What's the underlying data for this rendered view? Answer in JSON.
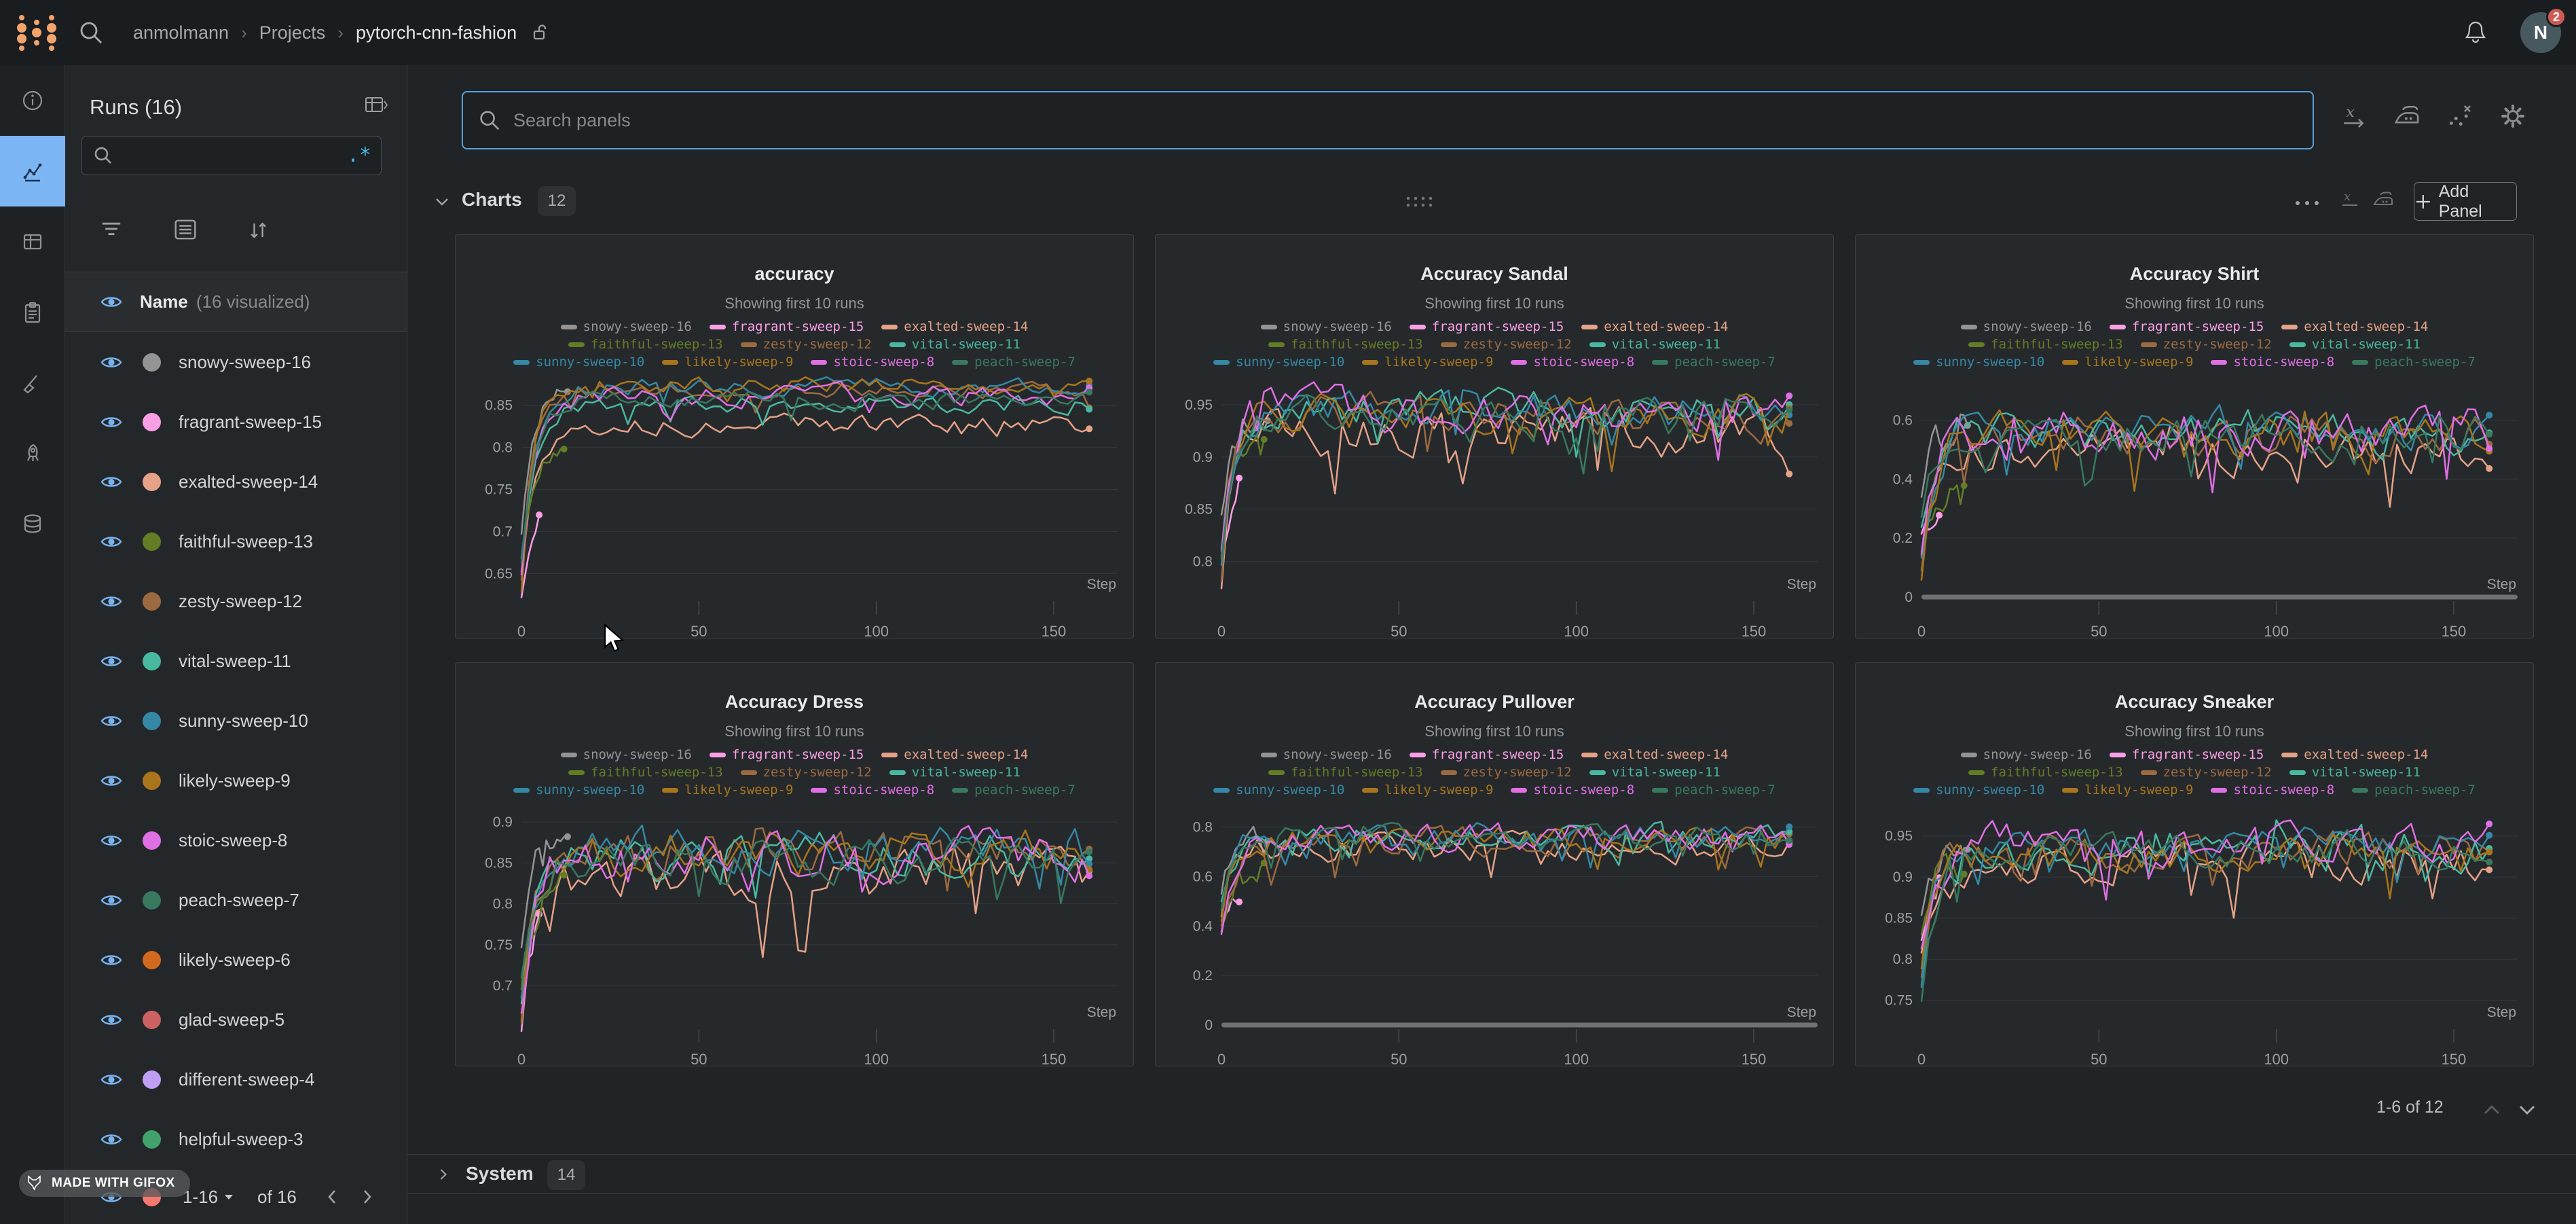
{
  "topbar": {
    "breadcrumb": [
      "anmolmann",
      "Projects",
      "pytorch-cnn-fashion"
    ],
    "breadcrumb_separator": "›",
    "notification_count": "2",
    "avatar_initial": "N"
  },
  "nav_rail": {
    "items": [
      "overview",
      "workspace",
      "runs-table",
      "logs",
      "sweeps",
      "launch",
      "artifacts"
    ],
    "active": "workspace",
    "active_color": "#7cb5f3"
  },
  "sidebar": {
    "title": "Runs (16)",
    "search_value": "",
    "regex_icon": ".*",
    "list_header": {
      "name": "Name",
      "visualized": "(16 visualized)"
    },
    "runs": [
      {
        "name": "snowy-sweep-16",
        "color": "#949494"
      },
      {
        "name": "fragrant-sweep-15",
        "color": "#fa9ee6"
      },
      {
        "name": "exalted-sweep-14",
        "color": "#e5a287"
      },
      {
        "name": "faithful-sweep-13",
        "color": "#627d25"
      },
      {
        "name": "zesty-sweep-12",
        "color": "#9c6a40"
      },
      {
        "name": "vital-sweep-11",
        "color": "#49b8a0"
      },
      {
        "name": "sunny-sweep-10",
        "color": "#3488a5"
      },
      {
        "name": "likely-sweep-9",
        "color": "#a8751c"
      },
      {
        "name": "stoic-sweep-8",
        "color": "#df6fe4"
      },
      {
        "name": "peach-sweep-7",
        "color": "#38795f"
      },
      {
        "name": "likely-sweep-6",
        "color": "#d2691e"
      },
      {
        "name": "glad-sweep-5",
        "color": "#ce6161"
      },
      {
        "name": "different-sweep-4",
        "color": "#c09ef4"
      },
      {
        "name": "helpful-sweep-3",
        "color": "#43a26c"
      }
    ],
    "partial_run_color": "#f5786e",
    "pagination": {
      "range": "1-16",
      "of": "of 16"
    }
  },
  "main": {
    "search_placeholder": "Search panels",
    "charts_section": {
      "label": "Charts",
      "count": "12",
      "add_panel": "Add Panel",
      "pagination": "1-6 of 12"
    },
    "system_section": {
      "label": "System",
      "count": "14"
    }
  },
  "watermark": "MADE WITH GIFOX",
  "chart_data": [
    {
      "type": "line",
      "title": "accuracy",
      "subtitle": "Showing first 10 runs",
      "xlabel": "Step",
      "x_ticks": [
        0,
        50,
        100,
        150
      ],
      "x_max": 168,
      "grid": true,
      "legend_position": "top",
      "ylim": [
        0.622,
        0.878
      ],
      "y_ticks": [
        0.65,
        0.7,
        0.75,
        0.8,
        0.85
      ],
      "zero_axis_bar": false,
      "series": [
        {
          "name": "snowy-sweep-16",
          "start": 0.7,
          "plateau": 0.876,
          "noise": 0.006,
          "steps": 13
        },
        {
          "name": "fragrant-sweep-15",
          "start": 0.627,
          "plateau": 0.756,
          "noise": 0.006,
          "steps": 5
        },
        {
          "name": "exalted-sweep-14",
          "start": 0.645,
          "plateau": 0.826,
          "noise": 0.008
        },
        {
          "name": "faithful-sweep-13",
          "start": 0.668,
          "plateau": 0.806,
          "noise": 0.007,
          "steps": 12
        },
        {
          "name": "zesty-sweep-12",
          "start": 0.648,
          "plateau": 0.868,
          "noise": 0.007
        },
        {
          "name": "vital-sweep-11",
          "start": 0.66,
          "plateau": 0.851,
          "noise": 0.008
        },
        {
          "name": "sunny-sweep-10",
          "start": 0.672,
          "plateau": 0.872,
          "noise": 0.007
        },
        {
          "name": "likely-sweep-9",
          "start": 0.635,
          "plateau": 0.874,
          "noise": 0.007
        },
        {
          "name": "stoic-sweep-8",
          "start": 0.64,
          "plateau": 0.862,
          "noise": 0.009
        },
        {
          "name": "peach-sweep-7",
          "start": 0.662,
          "plateau": 0.855,
          "noise": 0.008
        }
      ]
    },
    {
      "type": "line",
      "title": "Accuracy Sandal",
      "subtitle": "Showing first 10 runs",
      "xlabel": "Step",
      "x_ticks": [
        0,
        50,
        100,
        150
      ],
      "x_max": 168,
      "grid": true,
      "legend_position": "top",
      "ylim": [
        0.766,
        0.972
      ],
      "y_ticks": [
        0.8,
        0.85,
        0.9,
        0.95
      ],
      "zero_axis_bar": false,
      "series": [
        {
          "name": "snowy-sweep-16",
          "start": 0.84,
          "plateau": 0.945,
          "noise": 0.01,
          "steps": 13
        },
        {
          "name": "fragrant-sweep-15",
          "start": 0.8,
          "plateau": 0.905,
          "noise": 0.012,
          "steps": 5
        },
        {
          "name": "exalted-sweep-14",
          "start": 0.79,
          "plateau": 0.924,
          "noise": 0.016
        },
        {
          "name": "faithful-sweep-13",
          "start": 0.8,
          "plateau": 0.932,
          "noise": 0.012,
          "steps": 12
        },
        {
          "name": "zesty-sweep-12",
          "start": 0.78,
          "plateau": 0.94,
          "noise": 0.013
        },
        {
          "name": "vital-sweep-11",
          "start": 0.81,
          "plateau": 0.944,
          "noise": 0.013
        },
        {
          "name": "sunny-sweep-10",
          "start": 0.8,
          "plateau": 0.946,
          "noise": 0.012
        },
        {
          "name": "likely-sweep-9",
          "start": 0.79,
          "plateau": 0.938,
          "noise": 0.014
        },
        {
          "name": "stoic-sweep-8",
          "start": 0.8,
          "plateau": 0.943,
          "noise": 0.015
        },
        {
          "name": "peach-sweep-7",
          "start": 0.81,
          "plateau": 0.941,
          "noise": 0.012
        }
      ]
    },
    {
      "type": "line",
      "title": "Accuracy Shirt",
      "subtitle": "Showing first 10 runs",
      "xlabel": "Step",
      "x_ticks": [
        0,
        50,
        100,
        150
      ],
      "x_max": 168,
      "grid": true,
      "legend_position": "top",
      "ylim": [
        0.0,
        0.73
      ],
      "y_ticks": [
        0,
        0.2,
        0.4,
        0.6
      ],
      "zero_axis_bar": true,
      "series": [
        {
          "name": "snowy-sweep-16",
          "start": 0.3,
          "plateau": 0.6,
          "noise": 0.05,
          "steps": 13
        },
        {
          "name": "fragrant-sweep-15",
          "start": 0.21,
          "plateau": 0.28,
          "noise": 0.03,
          "steps": 5
        },
        {
          "name": "exalted-sweep-14",
          "start": 0.15,
          "plateau": 0.49,
          "noise": 0.05
        },
        {
          "name": "faithful-sweep-13",
          "start": 0.13,
          "plateau": 0.36,
          "noise": 0.05,
          "steps": 12
        },
        {
          "name": "zesty-sweep-12",
          "start": 0.14,
          "plateau": 0.55,
          "noise": 0.055
        },
        {
          "name": "vital-sweep-11",
          "start": 0.22,
          "plateau": 0.56,
          "noise": 0.055
        },
        {
          "name": "sunny-sweep-10",
          "start": 0.18,
          "plateau": 0.57,
          "noise": 0.05
        },
        {
          "name": "likely-sweep-9",
          "start": 0.12,
          "plateau": 0.56,
          "noise": 0.055
        },
        {
          "name": "stoic-sweep-8",
          "start": 0.2,
          "plateau": 0.56,
          "noise": 0.06
        },
        {
          "name": "peach-sweep-7",
          "start": 0.22,
          "plateau": 0.55,
          "noise": 0.05
        }
      ]
    },
    {
      "type": "line",
      "title": "Accuracy Dress",
      "subtitle": "Showing first 10 runs",
      "xlabel": "Step",
      "x_ticks": [
        0,
        50,
        100,
        150
      ],
      "x_max": 168,
      "grid": true,
      "legend_position": "top",
      "ylim": [
        0.652,
        0.915
      ],
      "y_ticks": [
        0.7,
        0.75,
        0.8,
        0.85,
        0.9
      ],
      "zero_axis_bar": false,
      "series": [
        {
          "name": "snowy-sweep-16",
          "start": 0.74,
          "plateau": 0.886,
          "noise": 0.012,
          "steps": 13
        },
        {
          "name": "fragrant-sweep-15",
          "start": 0.66,
          "plateau": 0.8,
          "noise": 0.015,
          "steps": 5
        },
        {
          "name": "exalted-sweep-14",
          "start": 0.67,
          "plateau": 0.836,
          "noise": 0.022
        },
        {
          "name": "faithful-sweep-13",
          "start": 0.68,
          "plateau": 0.83,
          "noise": 0.015,
          "steps": 12
        },
        {
          "name": "zesty-sweep-12",
          "start": 0.67,
          "plateau": 0.862,
          "noise": 0.02
        },
        {
          "name": "vital-sweep-11",
          "start": 0.69,
          "plateau": 0.858,
          "noise": 0.02
        },
        {
          "name": "sunny-sweep-10",
          "start": 0.7,
          "plateau": 0.868,
          "noise": 0.018
        },
        {
          "name": "likely-sweep-9",
          "start": 0.66,
          "plateau": 0.864,
          "noise": 0.02
        },
        {
          "name": "stoic-sweep-8",
          "start": 0.67,
          "plateau": 0.86,
          "noise": 0.022
        },
        {
          "name": "peach-sweep-7",
          "start": 0.69,
          "plateau": 0.856,
          "noise": 0.018
        }
      ]
    },
    {
      "type": "line",
      "title": "Accuracy Pullover",
      "subtitle": "Showing first 10 runs",
      "xlabel": "Step",
      "x_ticks": [
        0,
        50,
        100,
        150
      ],
      "x_max": 168,
      "grid": true,
      "legend_position": "top",
      "ylim": [
        0.0,
        0.87
      ],
      "y_ticks": [
        0,
        0.2,
        0.4,
        0.6,
        0.8
      ],
      "zero_axis_bar": true,
      "series": [
        {
          "name": "snowy-sweep-16",
          "start": 0.55,
          "plateau": 0.78,
          "noise": 0.03,
          "steps": 13
        },
        {
          "name": "fragrant-sweep-15",
          "start": 0.4,
          "plateau": 0.56,
          "noise": 0.04,
          "steps": 5
        },
        {
          "name": "exalted-sweep-14",
          "start": 0.45,
          "plateau": 0.715,
          "noise": 0.04
        },
        {
          "name": "faithful-sweep-13",
          "start": 0.42,
          "plateau": 0.66,
          "noise": 0.035,
          "steps": 12
        },
        {
          "name": "zesty-sweep-12",
          "start": 0.44,
          "plateau": 0.745,
          "noise": 0.04
        },
        {
          "name": "vital-sweep-11",
          "start": 0.48,
          "plateau": 0.76,
          "noise": 0.038
        },
        {
          "name": "sunny-sweep-10",
          "start": 0.46,
          "plateau": 0.765,
          "noise": 0.035
        },
        {
          "name": "likely-sweep-9",
          "start": 0.43,
          "plateau": 0.75,
          "noise": 0.04
        },
        {
          "name": "stoic-sweep-8",
          "start": 0.4,
          "plateau": 0.755,
          "noise": 0.04
        },
        {
          "name": "peach-sweep-7",
          "start": 0.47,
          "plateau": 0.755,
          "noise": 0.035
        }
      ]
    },
    {
      "type": "line",
      "title": "Accuracy Sneaker",
      "subtitle": "Showing first 10 runs",
      "xlabel": "Step",
      "x_ticks": [
        0,
        50,
        100,
        150
      ],
      "x_max": 168,
      "grid": true,
      "legend_position": "top",
      "ylim": [
        0.72,
        0.982
      ],
      "y_ticks": [
        0.75,
        0.8,
        0.85,
        0.9,
        0.95
      ],
      "zero_axis_bar": false,
      "series": [
        {
          "name": "snowy-sweep-16",
          "start": 0.86,
          "plateau": 0.941,
          "noise": 0.012,
          "steps": 13
        },
        {
          "name": "fragrant-sweep-15",
          "start": 0.82,
          "plateau": 0.903,
          "noise": 0.015,
          "steps": 5
        },
        {
          "name": "exalted-sweep-14",
          "start": 0.8,
          "plateau": 0.921,
          "noise": 0.018
        },
        {
          "name": "faithful-sweep-13",
          "start": 0.82,
          "plateau": 0.918,
          "noise": 0.014,
          "steps": 12
        },
        {
          "name": "zesty-sweep-12",
          "start": 0.79,
          "plateau": 0.932,
          "noise": 0.016
        },
        {
          "name": "vital-sweep-11",
          "start": 0.75,
          "plateau": 0.936,
          "noise": 0.018
        },
        {
          "name": "sunny-sweep-10",
          "start": 0.78,
          "plateau": 0.938,
          "noise": 0.015
        },
        {
          "name": "likely-sweep-9",
          "start": 0.8,
          "plateau": 0.93,
          "noise": 0.017
        },
        {
          "name": "stoic-sweep-8",
          "start": 0.83,
          "plateau": 0.94,
          "noise": 0.017
        },
        {
          "name": "peach-sweep-7",
          "start": 0.76,
          "plateau": 0.934,
          "noise": 0.015
        }
      ]
    }
  ]
}
